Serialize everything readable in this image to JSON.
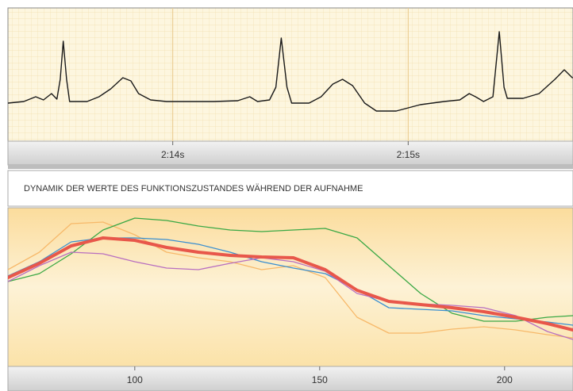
{
  "chart_data": [
    {
      "type": "line",
      "grid": true,
      "xlim": [
        133.3,
        135.7
      ],
      "ylim": [
        0,
        168
      ],
      "xticks": [
        {
          "value": 134,
          "label": "2:14s"
        },
        {
          "value": 135,
          "label": "2:15s"
        }
      ],
      "x": [
        133.3,
        133.367,
        133.418,
        133.451,
        133.485,
        133.508,
        133.522,
        133.535,
        133.549,
        133.562,
        133.636,
        133.687,
        133.737,
        133.788,
        133.822,
        133.855,
        133.906,
        133.973,
        134.074,
        134.175,
        134.276,
        134.327,
        134.36,
        134.411,
        134.438,
        134.461,
        134.485,
        134.505,
        134.579,
        134.63,
        134.68,
        134.721,
        134.764,
        134.815,
        134.865,
        134.949,
        135.051,
        135.152,
        135.219,
        135.259,
        135.286,
        135.32,
        135.36,
        135.387,
        135.407,
        135.421,
        135.488,
        135.556,
        135.623,
        135.663,
        135.697
      ],
      "series": [
        {
          "color": "#1a1a1a",
          "values": [
            48,
            50,
            56,
            52,
            60,
            53,
            78,
            126,
            78,
            50,
            50,
            56,
            66,
            80,
            76,
            60,
            52,
            50,
            50,
            50,
            51,
            56,
            50,
            52,
            68,
            130,
            68,
            48,
            48,
            56,
            72,
            78,
            70,
            48,
            38,
            38,
            46,
            50,
            52,
            60,
            56,
            50,
            56,
            138,
            68,
            54,
            54,
            60,
            78,
            90,
            80
          ]
        }
      ]
    },
    {
      "type": "line",
      "grid": false,
      "title": "DYNAMIK DER WERTE DES FUNKTIONSZUSTANDES WÄHREND DER AUFNAHME",
      "xlim": [
        65.7,
        218.5
      ],
      "ylim": [
        0,
        200
      ],
      "xticks": [
        100,
        150,
        200
      ],
      "x": [
        65.7,
        74.2,
        82.8,
        91.4,
        100,
        108.6,
        117.2,
        125.8,
        134.3,
        142.9,
        151.5,
        160.1,
        168.7,
        177.3,
        185.8,
        194.4,
        203,
        211.6,
        218.5
      ],
      "series": [
        {
          "color": "#f7b96a",
          "values": [
            122,
            144,
            180,
            182,
            166,
            144,
            137,
            132,
            122,
            127,
            112,
            62,
            42,
            42,
            47,
            50,
            46,
            40,
            36
          ]
        },
        {
          "color": "#3aa845",
          "values": [
            107,
            117,
            142,
            172,
            187,
            184,
            177,
            172,
            170,
            172,
            174,
            162,
            127,
            92,
            67,
            57,
            57,
            62,
            64
          ]
        },
        {
          "color": "#3a8fd0",
          "values": [
            114,
            132,
            157,
            162,
            162,
            160,
            154,
            144,
            132,
            124,
            117,
            97,
            74,
            72,
            70,
            64,
            60,
            56,
            52
          ]
        },
        {
          "color": "#b86fc0",
          "values": [
            107,
            127,
            144,
            142,
            132,
            124,
            122,
            130,
            137,
            132,
            120,
            92,
            82,
            79,
            77,
            74,
            64,
            44,
            34
          ]
        },
        {
          "color": "#e8574a",
          "values": [
            112,
            130,
            152,
            162,
            159,
            150,
            144,
            140,
            138,
            137,
            122,
            96,
            82,
            78,
            74,
            69,
            62,
            54,
            46
          ]
        }
      ]
    }
  ]
}
